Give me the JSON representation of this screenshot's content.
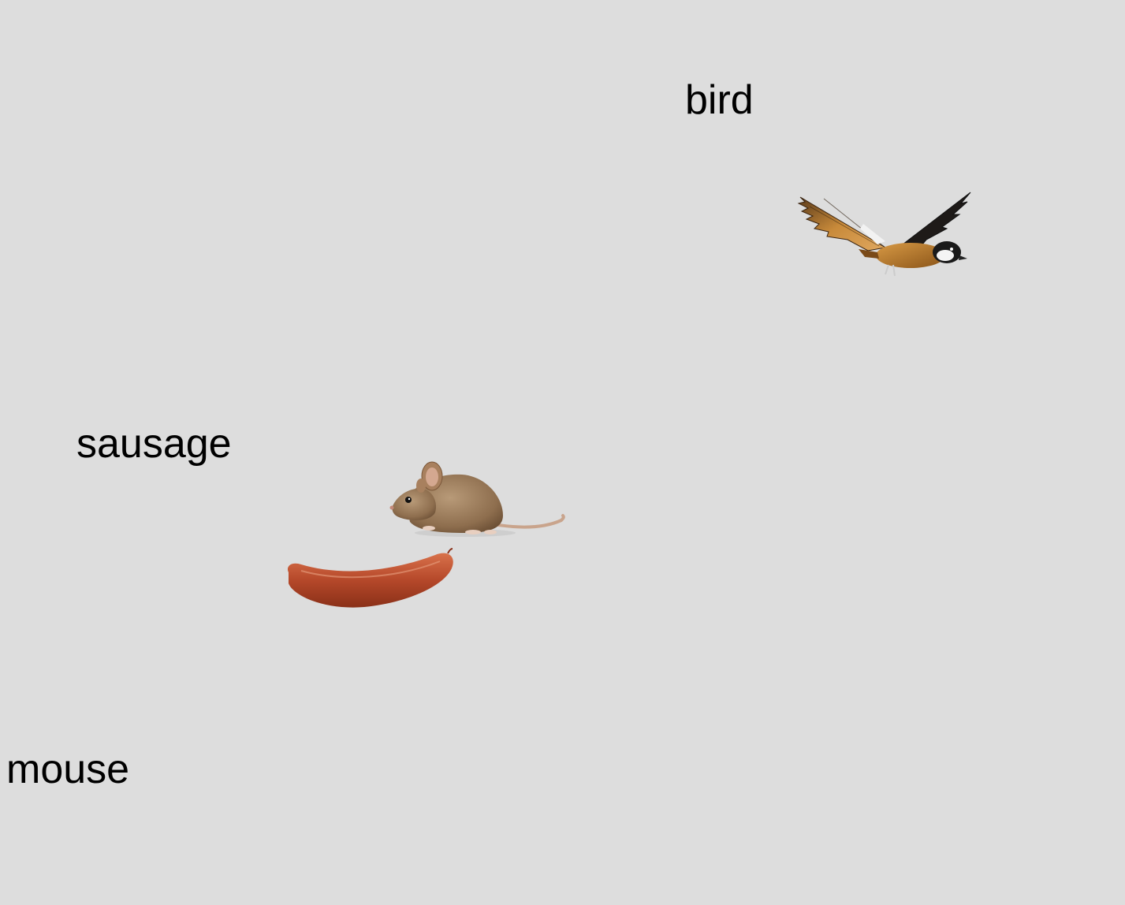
{
  "labels": {
    "bird": "bird",
    "sausage": "sausage",
    "mouse": "mouse"
  },
  "pictures": {
    "bird": "bird-icon",
    "mouse": "mouse-icon",
    "sausage": "sausage-icon"
  },
  "colors": {
    "background": "#dddddd",
    "text": "#000000",
    "sausage": "#b5482a",
    "bird_body": "#b87a2a",
    "mouse_body": "#9a7b5c"
  }
}
